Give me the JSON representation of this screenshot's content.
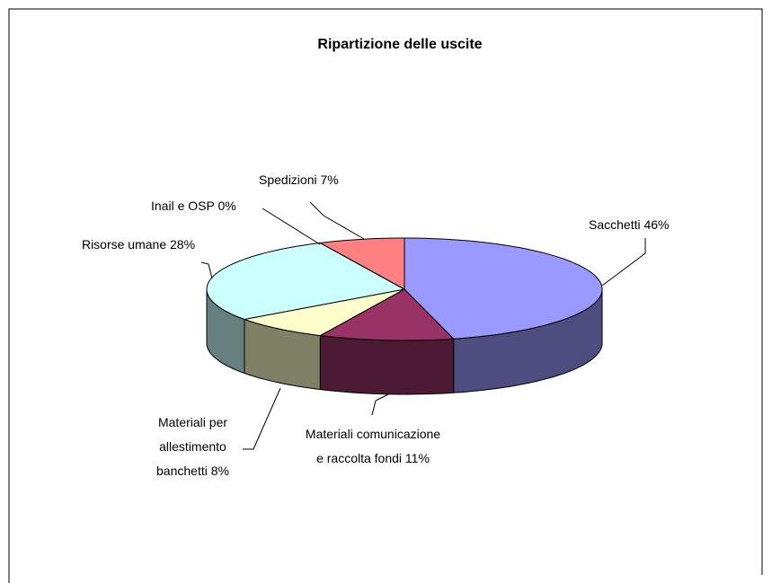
{
  "chart_data": {
    "type": "pie3d",
    "title": "Ripartizione delle uscite",
    "categories": [
      "Sacchetti",
      "Materiali comunicazione e raccolta fondi",
      "Materiali per allestimento banchetti",
      "Risorse umane",
      "Inail e OSP",
      "Spedizioni"
    ],
    "values": [
      46,
      11,
      8,
      28,
      0,
      7
    ],
    "value_labels": [
      "46%",
      "11%",
      "8%",
      "28%",
      "0%",
      "7%"
    ],
    "colors": [
      "#9999ff",
      "#993366",
      "#ffffcc",
      "#ccffff",
      "#ffffff",
      "#ff8080"
    ]
  }
}
